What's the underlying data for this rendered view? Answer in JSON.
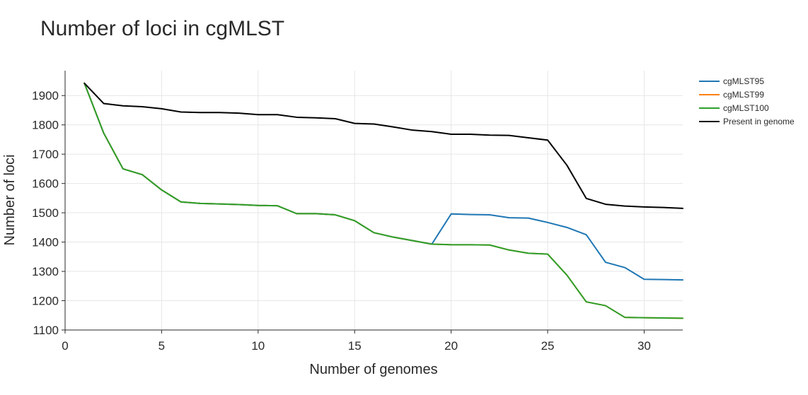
{
  "chart_data": {
    "type": "line",
    "title": "Number of loci in cgMLST",
    "xlabel": "Number of genomes",
    "ylabel": "Number of loci",
    "xlim": [
      0,
      32
    ],
    "ylim": [
      1100,
      1985
    ],
    "xticks": [
      0,
      5,
      10,
      15,
      20,
      25,
      30
    ],
    "yticks": [
      1100,
      1200,
      1300,
      1400,
      1500,
      1600,
      1700,
      1800,
      1900
    ],
    "grid": true,
    "legend_position": "right",
    "x": [
      1,
      2,
      3,
      4,
      5,
      6,
      7,
      8,
      9,
      10,
      11,
      12,
      13,
      14,
      15,
      16,
      17,
      18,
      19,
      20,
      21,
      22,
      23,
      24,
      25,
      26,
      27,
      28,
      29,
      30,
      31,
      32
    ],
    "series": [
      {
        "name": "cgMLST95",
        "color": "#1f77b4",
        "values": [
          1942,
          1772,
          1650,
          1630,
          1578,
          1537,
          1532,
          1530,
          1528,
          1525,
          1524,
          1497,
          1497,
          1493,
          1473,
          1432,
          1417,
          1405,
          1393,
          1496,
          1494,
          1493,
          1483,
          1482,
          1467,
          1450,
          1425,
          1331,
          1313,
          1273,
          1272,
          1271
        ]
      },
      {
        "name": "cgMLST99",
        "color": "#ff7f0e",
        "values": [
          1942,
          1772,
          1650,
          1630,
          1578,
          1537,
          1532,
          1530,
          1528,
          1525,
          1524,
          1497,
          1497,
          1493,
          1473,
          1432,
          1417,
          1405,
          1393,
          1391,
          1391,
          1390,
          1373,
          1362,
          1359,
          1287,
          1196,
          1183,
          1143,
          1142,
          1141,
          1140
        ]
      },
      {
        "name": "cgMLST100",
        "color": "#2ca02c",
        "values": [
          1942,
          1772,
          1650,
          1630,
          1578,
          1537,
          1532,
          1530,
          1528,
          1525,
          1524,
          1497,
          1497,
          1493,
          1473,
          1432,
          1417,
          1405,
          1393,
          1391,
          1391,
          1390,
          1373,
          1362,
          1359,
          1287,
          1196,
          1183,
          1143,
          1142,
          1141,
          1140
        ]
      },
      {
        "name": "Present in genome",
        "color": "#000000",
        "values": [
          1942,
          1873,
          1865,
          1862,
          1855,
          1844,
          1842,
          1842,
          1840,
          1835,
          1835,
          1826,
          1824,
          1821,
          1805,
          1803,
          1793,
          1782,
          1777,
          1768,
          1768,
          1765,
          1764,
          1756,
          1748,
          1662,
          1549,
          1529,
          1523,
          1520,
          1518,
          1515
        ]
      }
    ]
  }
}
